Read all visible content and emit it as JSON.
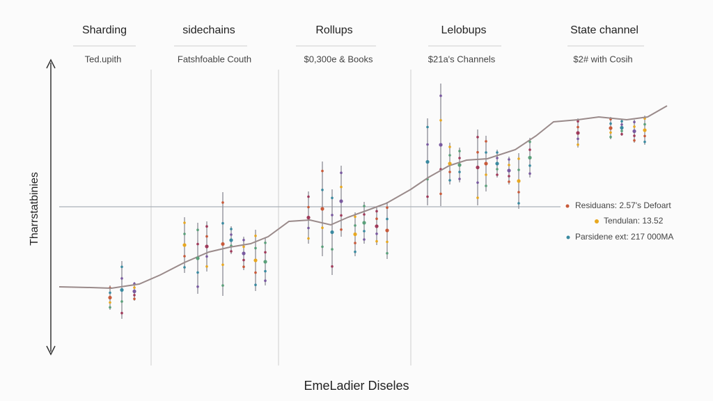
{
  "columns": [
    {
      "title": "Sharding",
      "subtitle": "Ted.upith"
    },
    {
      "title": "sidechains",
      "subtitle": "Fatshfoable Couth"
    },
    {
      "title": "Rollups",
      "subtitle": "$0,300e & Books"
    },
    {
      "title": "Lelobups",
      "subtitle": "$21a's Channels"
    },
    {
      "title": "State channel",
      "subtitle": "$2# with Cosih"
    }
  ],
  "y_axis_label": "Tharrstatbinies",
  "x_axis_label": "EmeLadier Diseles",
  "legend": [
    "Residuans: 2.57's Defoart",
    "Tendulan: 13.52",
    "Parsidene ext: 217 000MA"
  ]
}
